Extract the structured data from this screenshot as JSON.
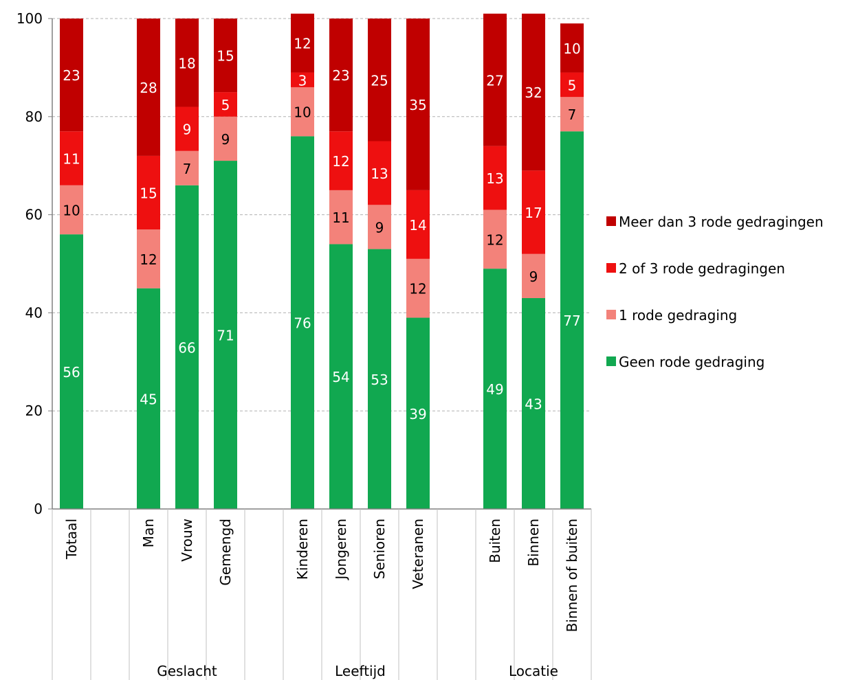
{
  "chart_data": {
    "type": "bar",
    "stacked": true,
    "ylim": [
      0,
      100
    ],
    "yticks": [
      0,
      20,
      40,
      60,
      80,
      100
    ],
    "grid": true,
    "legend_position": "right",
    "slots": [
      "Totaal",
      "",
      "Man",
      "Vrouw",
      "Gemengd",
      "",
      "Kinderen",
      "Jongeren",
      "Senioren",
      "Veteranen",
      "",
      "Buiten",
      "Binnen",
      "Binnen of buiten"
    ],
    "categories": [
      "Totaal",
      "Man",
      "Vrouw",
      "Gemengd",
      "Kinderen",
      "Jongeren",
      "Senioren",
      "Veteranen",
      "Buiten",
      "Binnen",
      "Binnen of buiten"
    ],
    "groups": [
      {
        "label": "",
        "categories": [
          "Totaal"
        ]
      },
      {
        "label": "Geslacht",
        "categories": [
          "Man",
          "Vrouw",
          "Gemengd"
        ]
      },
      {
        "label": "Leeftijd",
        "categories": [
          "Kinderen",
          "Jongeren",
          "Senioren",
          "Veteranen"
        ]
      },
      {
        "label": "Locatie",
        "categories": [
          "Buiten",
          "Binnen",
          "Binnen of buiten"
        ]
      }
    ],
    "series": [
      {
        "name": "Geen rode gedraging",
        "color": "#11a850",
        "label_color": "#ffffff",
        "values": [
          56,
          45,
          66,
          71,
          76,
          54,
          53,
          39,
          49,
          43,
          77
        ]
      },
      {
        "name": "1 rode gedraging",
        "color": "#f3827a",
        "label_color": "#000000",
        "values": [
          10,
          12,
          7,
          9,
          10,
          11,
          9,
          12,
          12,
          9,
          7
        ]
      },
      {
        "name": "2 of 3 rode gedragingen",
        "color": "#ee1010",
        "label_color": "#ffffff",
        "values": [
          11,
          15,
          9,
          5,
          3,
          12,
          13,
          14,
          13,
          17,
          5
        ]
      },
      {
        "name": "Meer dan 3 rode gedragingen",
        "color": "#c00000",
        "label_color": "#ffffff",
        "values": [
          23,
          28,
          18,
          15,
          12,
          23,
          25,
          35,
          27,
          32,
          10
        ]
      }
    ]
  }
}
